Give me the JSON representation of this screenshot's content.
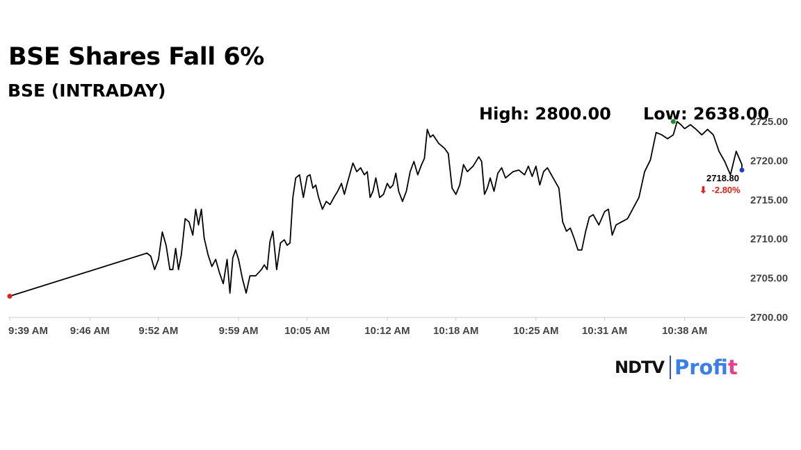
{
  "chart_data": {
    "type": "line",
    "title": "BSE Shares Fall 6%",
    "subtitle": "BSE (INTRADAY)",
    "high_label": "High: 2800.00",
    "low_label": "Low: 2638.00",
    "last_price": "2718.80",
    "change": "-2.80%",
    "change_arrow": "⬇",
    "x_tick_labels": [
      "9:39 AM",
      "9:46 AM",
      "9:52 AM",
      "9:59 AM",
      "10:05 AM",
      "10:12 AM",
      "10:18 AM",
      "10:25 AM",
      "10:31 AM",
      "10:38 AM"
    ],
    "x_tick_times": [
      "9:39",
      "9:46",
      "9:52",
      "9:59",
      "10:05",
      "10:12",
      "10:18",
      "10:25",
      "10:31",
      "10:38"
    ],
    "y_ticks": [
      "2700.00",
      "2705.00",
      "2710.00",
      "2715.00",
      "2720.00",
      "2725.00"
    ],
    "xlim": [
      "9:39",
      "10:43"
    ],
    "ylim": [
      2700,
      2725
    ],
    "grid": false,
    "series": [
      {
        "color": "#000000",
        "points": [
          [
            "9:39",
            2702.7
          ],
          [
            "9:51",
            2708.2
          ],
          [
            "9:51",
            2707.8
          ],
          [
            "9:51",
            2706.1
          ],
          [
            "9:52",
            2707.4
          ],
          [
            "9:52",
            2710.9
          ],
          [
            "9:52",
            2709.2
          ],
          [
            "9:53",
            2706.1
          ],
          [
            "9:53",
            2706.1
          ],
          [
            "9:53",
            2708.8
          ],
          [
            "9:53",
            2706.1
          ],
          [
            "9:54",
            2708.0
          ],
          [
            "9:54",
            2712.6
          ],
          [
            "9:54",
            2712.2
          ],
          [
            "9:55",
            2710.5
          ],
          [
            "9:55",
            2713.8
          ],
          [
            "9:55",
            2711.8
          ],
          [
            "9:55",
            2713.8
          ],
          [
            "9:56",
            2710.1
          ],
          [
            "9:56",
            2708.0
          ],
          [
            "9:56",
            2706.5
          ],
          [
            "9:57",
            2707.4
          ],
          [
            "9:57",
            2705.7
          ],
          [
            "9:57",
            2704.3
          ],
          [
            "9:58",
            2707.4
          ],
          [
            "9:58",
            2703.1
          ],
          [
            "9:58",
            2707.6
          ],
          [
            "9:58",
            2708.6
          ],
          [
            "9:59",
            2707.4
          ],
          [
            "9:59",
            2705.0
          ],
          [
            "9:59",
            2703.1
          ],
          [
            "10:00",
            2705.3
          ],
          [
            "10:00",
            2705.3
          ],
          [
            "10:01",
            2706.1
          ],
          [
            "10:01",
            2706.7
          ],
          [
            "10:01",
            2706.1
          ],
          [
            "10:01",
            2709.7
          ],
          [
            "10:02",
            2711.0
          ],
          [
            "10:02",
            2706.1
          ],
          [
            "10:02",
            2709.5
          ],
          [
            "10:03",
            2709.9
          ],
          [
            "10:03",
            2709.2
          ],
          [
            "10:03",
            2709.5
          ],
          [
            "10:03",
            2715.3
          ],
          [
            "10:04",
            2717.8
          ],
          [
            "10:04",
            2718.2
          ],
          [
            "10:04",
            2715.3
          ],
          [
            "10:05",
            2718.0
          ],
          [
            "10:05",
            2718.2
          ],
          [
            "10:05",
            2716.5
          ],
          [
            "10:05",
            2716.9
          ],
          [
            "10:06",
            2715.3
          ],
          [
            "10:06",
            2713.8
          ],
          [
            "10:06",
            2714.8
          ],
          [
            "10:07",
            2714.4
          ],
          [
            "10:07",
            2715.3
          ],
          [
            "10:07",
            2716.1
          ],
          [
            "10:08",
            2717.1
          ],
          [
            "10:08",
            2715.7
          ],
          [
            "10:08",
            2717.1
          ],
          [
            "10:08",
            2718.4
          ],
          [
            "10:09",
            2719.7
          ],
          [
            "10:09",
            2718.6
          ],
          [
            "10:09",
            2719.1
          ],
          [
            "10:10",
            2718.2
          ],
          [
            "10:10",
            2718.6
          ],
          [
            "10:10",
            2715.3
          ],
          [
            "10:10",
            2716.1
          ],
          [
            "10:11",
            2717.8
          ],
          [
            "10:11",
            2715.3
          ],
          [
            "10:11",
            2715.7
          ],
          [
            "10:12",
            2717.1
          ],
          [
            "10:12",
            2716.5
          ],
          [
            "10:12",
            2716.9
          ],
          [
            "10:12",
            2718.4
          ],
          [
            "10:13",
            2716.1
          ],
          [
            "10:13",
            2714.8
          ],
          [
            "10:13",
            2716.1
          ],
          [
            "10:14",
            2718.6
          ],
          [
            "10:14",
            2719.9
          ],
          [
            "10:14",
            2718.2
          ],
          [
            "10:15",
            2719.5
          ],
          [
            "10:15",
            2720.3
          ],
          [
            "10:15",
            2724.0
          ],
          [
            "10:15",
            2723.0
          ],
          [
            "10:16",
            2723.3
          ],
          [
            "10:16",
            2722.2
          ],
          [
            "10:17",
            2721.6
          ],
          [
            "10:17",
            2720.9
          ],
          [
            "10:17",
            2716.5
          ],
          [
            "10:18",
            2715.7
          ],
          [
            "10:18",
            2716.9
          ],
          [
            "10:18",
            2719.5
          ],
          [
            "10:19",
            2718.6
          ],
          [
            "10:19",
            2719.3
          ],
          [
            "10:20",
            2720.5
          ],
          [
            "10:20",
            2719.9
          ],
          [
            "10:20",
            2715.7
          ],
          [
            "10:20",
            2716.5
          ],
          [
            "10:21",
            2717.8
          ],
          [
            "10:21",
            2716.1
          ],
          [
            "10:21",
            2718.4
          ],
          [
            "10:22",
            2719.1
          ],
          [
            "10:22",
            2717.8
          ],
          [
            "10:22",
            2718.2
          ],
          [
            "10:23",
            2718.6
          ],
          [
            "10:23",
            2718.8
          ],
          [
            "10:24",
            2718.2
          ],
          [
            "10:24",
            2719.3
          ],
          [
            "10:24",
            2718.0
          ],
          [
            "10:25",
            2719.3
          ],
          [
            "10:25",
            2716.9
          ],
          [
            "10:25",
            2718.6
          ],
          [
            "10:26",
            2719.1
          ],
          [
            "10:26",
            2717.8
          ],
          [
            "10:27",
            2716.5
          ],
          [
            "10:27",
            2712.2
          ],
          [
            "10:27",
            2711.0
          ],
          [
            "10:28",
            2711.4
          ],
          [
            "10:28",
            2710.1
          ],
          [
            "10:28",
            2708.6
          ],
          [
            "10:29",
            2708.6
          ],
          [
            "10:29",
            2710.9
          ],
          [
            "10:29",
            2712.8
          ],
          [
            "10:30",
            2713.1
          ],
          [
            "10:30",
            2711.8
          ],
          [
            "10:31",
            2713.5
          ],
          [
            "10:31",
            2713.8
          ],
          [
            "10:31",
            2710.5
          ],
          [
            "10:32",
            2711.8
          ],
          [
            "10:32",
            2712.2
          ],
          [
            "10:33",
            2712.6
          ],
          [
            "10:33",
            2713.5
          ],
          [
            "10:33",
            2714.4
          ],
          [
            "10:34",
            2715.3
          ],
          [
            "10:34",
            2718.6
          ],
          [
            "10:35",
            2720.1
          ],
          [
            "10:35",
            2723.6
          ],
          [
            "10:36",
            2723.3
          ],
          [
            "10:36",
            2722.8
          ],
          [
            "10:37",
            2723.3
          ],
          [
            "10:37",
            2725.0
          ],
          [
            "10:37",
            2724.6
          ],
          [
            "10:38",
            2724.1
          ],
          [
            "10:38",
            2724.6
          ],
          [
            "10:39",
            2724.0
          ],
          [
            "10:39",
            2723.3
          ],
          [
            "10:40",
            2724.0
          ],
          [
            "10:40",
            2723.3
          ],
          [
            "10:41",
            2721.2
          ],
          [
            "10:41",
            2719.9
          ],
          [
            "10:42",
            2718.2
          ],
          [
            "10:42",
            2721.2
          ],
          [
            "10:43",
            2719.5
          ],
          [
            "10:43",
            2718.8
          ]
        ]
      }
    ],
    "markers": [
      {
        "label": "start",
        "x": "9:39",
        "y": 2702.7,
        "color": "#e0201b"
      },
      {
        "label": "peak",
        "x": "10:37",
        "y": 2725.0,
        "color": "#1a8f2a"
      },
      {
        "label": "last",
        "x": "10:43",
        "y": 2718.8,
        "color": "#1f3fbf"
      }
    ]
  },
  "colors": {
    "line": "#000000",
    "axis": "#cccccc",
    "tick_text": "#444444",
    "down": "#e0201b",
    "brand_blue": "#3a7fe6",
    "brand_pink": "#ee3c8a"
  },
  "logo": {
    "ndtv": "NDTV",
    "profit_main": "Prof",
    "profit_end": "it"
  }
}
